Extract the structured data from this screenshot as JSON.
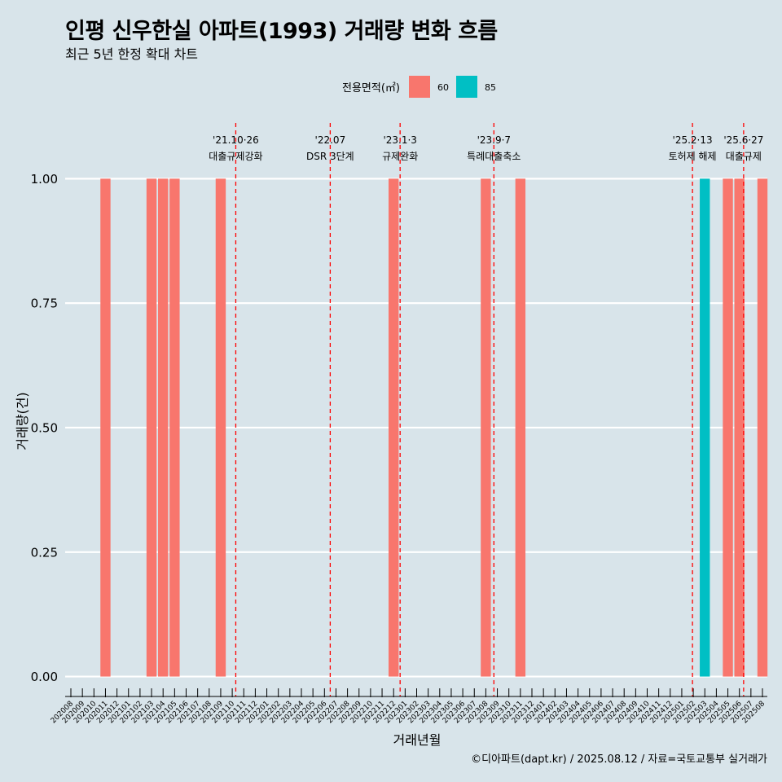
{
  "title": "인평 신우한실 아파트(1993) 거래량 변화 흐름",
  "subtitle": "최근 5년 한정 확대 차트",
  "caption": "©디아파트(dapt.kr) / 2025.08.12 / 자료=국토교통부 실거래가",
  "colors": {
    "background": "#d8e4ea",
    "gridline": "#ffffff",
    "series_60": "#f8766d",
    "series_85": "#00bfc4",
    "event_line": "#ff0000"
  },
  "chart_data": {
    "type": "bar",
    "xlabel": "거래년월",
    "ylabel": "거래량(건)",
    "ylim": [
      -0.04,
      1.12
    ],
    "yticks": [
      0.0,
      0.25,
      0.5,
      0.75,
      1.0
    ],
    "ytick_labels": [
      "0.00",
      "0.25",
      "0.50",
      "0.75",
      "1.00"
    ],
    "grid": true,
    "legend": {
      "title": "전용면적(㎡)",
      "position": "top",
      "entries": [
        "60",
        "85"
      ]
    },
    "categories": [
      "202008",
      "202009",
      "202010",
      "202011",
      "202012",
      "202101",
      "202102",
      "202103",
      "202104",
      "202105",
      "202106",
      "202107",
      "202108",
      "202109",
      "202110",
      "202111",
      "202112",
      "202201",
      "202202",
      "202203",
      "202204",
      "202205",
      "202206",
      "202207",
      "202208",
      "202209",
      "202210",
      "202211",
      "202212",
      "202301",
      "202302",
      "202303",
      "202304",
      "202305",
      "202306",
      "202307",
      "202308",
      "202309",
      "202310",
      "202311",
      "202312",
      "202401",
      "202402",
      "202403",
      "202404",
      "202405",
      "202406",
      "202407",
      "202408",
      "202409",
      "202410",
      "202411",
      "202412",
      "202501",
      "202502",
      "202503",
      "202504",
      "202505",
      "202506",
      "202507",
      "202508"
    ],
    "series": [
      {
        "name": "60",
        "points": [
          {
            "x": "202011",
            "y": 1
          },
          {
            "x": "202103",
            "y": 1
          },
          {
            "x": "202104",
            "y": 1
          },
          {
            "x": "202105",
            "y": 1
          },
          {
            "x": "202109",
            "y": 1
          },
          {
            "x": "202212",
            "y": 1
          },
          {
            "x": "202308",
            "y": 1
          },
          {
            "x": "202311",
            "y": 1
          },
          {
            "x": "202505",
            "y": 1
          },
          {
            "x": "202506",
            "y": 1
          },
          {
            "x": "202508",
            "y": 1
          }
        ]
      },
      {
        "name": "85",
        "points": [
          {
            "x": "202503",
            "y": 1
          }
        ]
      }
    ],
    "events": [
      {
        "date": "2021-10-26",
        "label1": "'21.10·26",
        "label2": "대출규제강화"
      },
      {
        "date": "2022-07-01",
        "label1": "'22.07",
        "label2": "DSR 3단계"
      },
      {
        "date": "2023-01-03",
        "label1": "'23.1·3",
        "label2": "규제완화"
      },
      {
        "date": "2023-09-07",
        "label1": "'23.9·7",
        "label2": "특례대출축소"
      },
      {
        "date": "2025-02-13",
        "label1": "'25.2·13",
        "label2": "토허제 해제"
      },
      {
        "date": "2025-06-27",
        "label1": "'25.6·27",
        "label2": "대출규제"
      }
    ]
  }
}
